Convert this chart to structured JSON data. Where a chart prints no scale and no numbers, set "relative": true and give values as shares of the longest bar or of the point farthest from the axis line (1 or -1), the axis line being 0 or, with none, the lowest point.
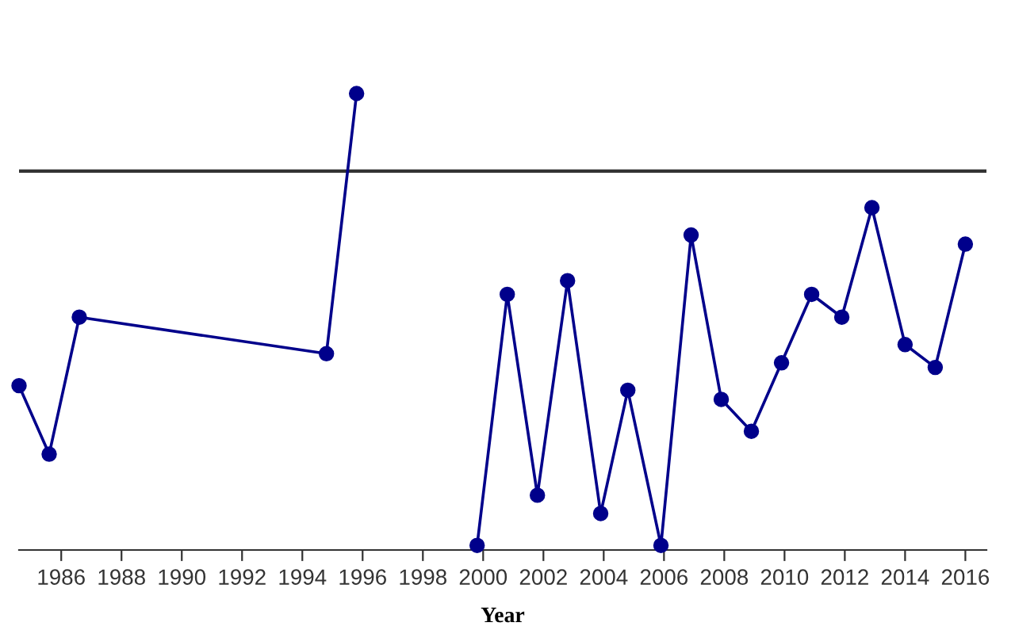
{
  "chart_data": {
    "type": "line",
    "xlabel": "Year",
    "relative": true,
    "x": [
      1984.6,
      1985.6,
      1986.6,
      1994.8,
      1995.8,
      1998.0,
      1999.8,
      2000.8,
      2001.8,
      2002.8,
      2003.9,
      2004.8,
      2005.9,
      2006.9,
      2007.9,
      2008.9,
      2009.9,
      2010.9,
      2011.9,
      2012.9,
      2014.0,
      2015.0,
      2016.0
    ],
    "series": [
      {
        "color": "#00008b",
        "values": [
          0.36,
          0.21,
          0.51,
          0.43,
          1.0,
          null,
          0.01,
          0.56,
          0.12,
          0.59,
          0.08,
          0.35,
          0.01,
          0.69,
          0.33,
          0.26,
          0.41,
          0.56,
          0.51,
          0.75,
          0.45,
          0.4,
          0.67
        ]
      }
    ],
    "xlim": [
      1984.6,
      2016.7
    ],
    "xticks": [
      1986,
      1988,
      1990,
      1992,
      1994,
      1996,
      1998,
      2000,
      2002,
      2004,
      2006,
      2008,
      2010,
      2012,
      2014,
      2016
    ],
    "ref_lines": [
      {
        "axis": "y",
        "value": 0.83,
        "color": "#333333"
      }
    ],
    "marker": "circle",
    "line_style": "solid",
    "grid": false,
    "legend": false
  }
}
